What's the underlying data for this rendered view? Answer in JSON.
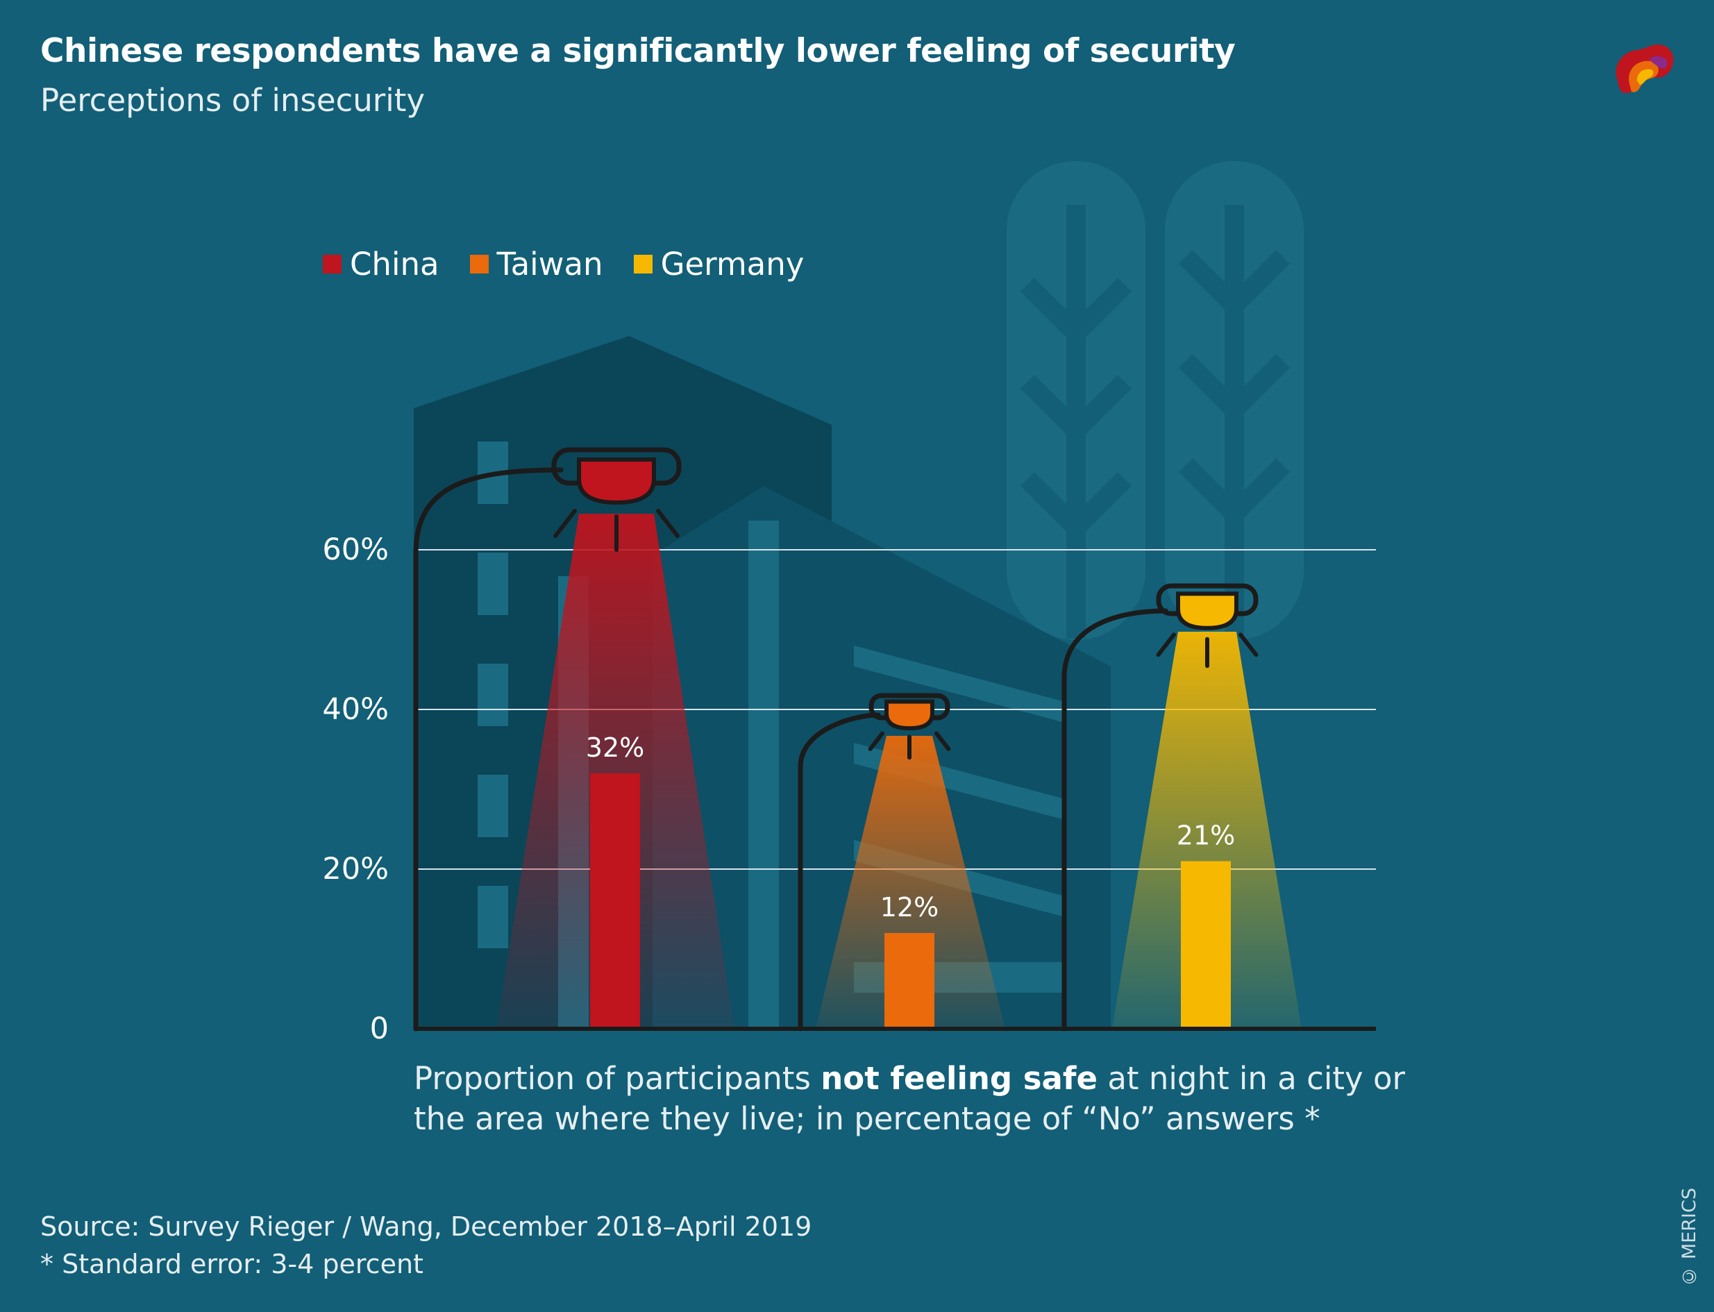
{
  "header": {
    "title": "Chinese respondents have a significantly lower feeling of security",
    "subtitle": "Perceptions of insecurity"
  },
  "legend": {
    "items": [
      {
        "label": "China",
        "color": "#c0141e"
      },
      {
        "label": "Taiwan",
        "color": "#ea6a0c"
      },
      {
        "label": "Germany",
        "color": "#f6b800"
      }
    ]
  },
  "caption": {
    "part1": "Proportion of participants ",
    "bold": "not feeling safe",
    "part2": " at night in a city or the area where they live; in percentage of “No” answers *"
  },
  "footer": {
    "source": "Source: Survey Rieger / Wang, December 2018–April 2019",
    "note": "* Standard error: 3-4 percent",
    "copyright": "© MERICS"
  },
  "chart_data": {
    "type": "bar",
    "title": "Chinese respondents have a significantly lower feeling of security",
    "subtitle": "Perceptions of insecurity",
    "categories": [
      "China",
      "Taiwan",
      "Germany"
    ],
    "values": [
      32,
      12,
      21
    ],
    "value_labels": [
      "32%",
      "12%",
      "21%"
    ],
    "colors": [
      "#c0141e",
      "#ea6a0c",
      "#f6b800"
    ],
    "ylim": [
      0,
      60
    ],
    "yticks": [
      0,
      20,
      40,
      60
    ],
    "ytick_labels": [
      "0",
      "20%",
      "40%",
      "60%"
    ],
    "grid": true,
    "xlabel": "",
    "ylabel": ""
  }
}
